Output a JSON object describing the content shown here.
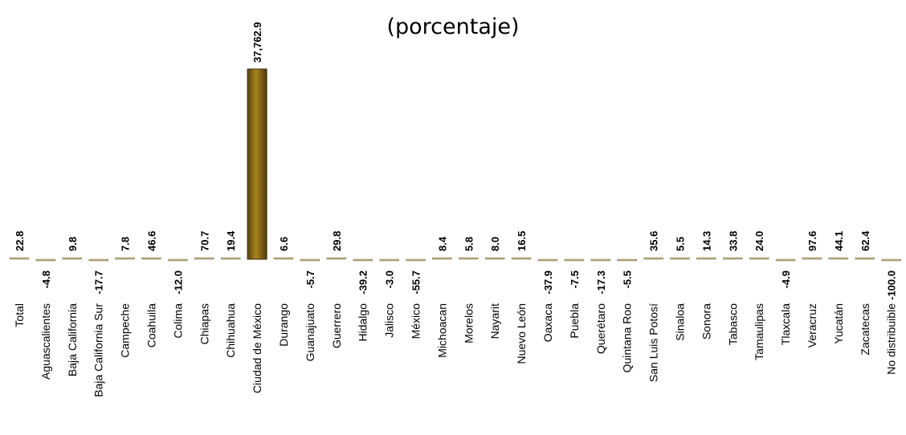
{
  "title_lines": [
    "",
    "(porcentaje)"
  ],
  "chart_data": {
    "type": "bar",
    "title": "(porcentaje)",
    "bar_color": "#8B6914",
    "categories": [
      "Total",
      "Aguascalientes",
      "Baja California",
      "Baja California Sur",
      "Campeche",
      "Coahuila",
      "Colima",
      "Chiapas",
      "Chihuahua",
      "Ciudad de México",
      "Durango",
      "Guanajuato",
      "Guerrero",
      "Hidalgo",
      "Jalisco",
      "México",
      "Michoacan",
      "Morelos",
      "Nayarit",
      "Nuevo León",
      "Oaxaca",
      "Puebla",
      "Querétaro",
      "Quintana Roo",
      "San Luis Potosí",
      "Sinaloa",
      "Sonora",
      "Tabasco",
      "Tamaulipas",
      "Tlaxcala",
      "Veracruz",
      "Yucatán",
      "Zacatecas",
      "No distribuible"
    ],
    "values": [
      22.8,
      -4.8,
      9.8,
      -17.7,
      7.8,
      46.6,
      -12.0,
      70.7,
      19.4,
      37762.9,
      6.6,
      -5.7,
      29.8,
      -39.2,
      -3.0,
      -55.7,
      8.4,
      5.8,
      8.0,
      16.5,
      -37.9,
      -7.5,
      -17.3,
      -5.5,
      35.6,
      5.5,
      14.3,
      33.8,
      24.0,
      -4.9,
      97.6,
      44.1,
      62.4,
      -100.0
    ],
    "value_labels": [
      "22.8",
      "-4.8",
      "9.8",
      "-17.7",
      "7.8",
      "46.6",
      "-12.0",
      "70.7",
      "19.4",
      "37,762.9",
      "6.6",
      "-5.7",
      "29.8",
      "-39.2",
      "-3.0",
      "-55.7",
      "8.4",
      "5.8",
      "8.0",
      "16.5",
      "-37.9",
      "-7.5",
      "-17.3",
      "-5.5",
      "35.6",
      "5.5",
      "14.3",
      "33.8",
      "24.0",
      "-4.9",
      "97.6",
      "44.1",
      "62.4",
      "-100.0"
    ],
    "ylim": [
      -100,
      37762.9
    ],
    "grid": false,
    "legend": "none"
  }
}
